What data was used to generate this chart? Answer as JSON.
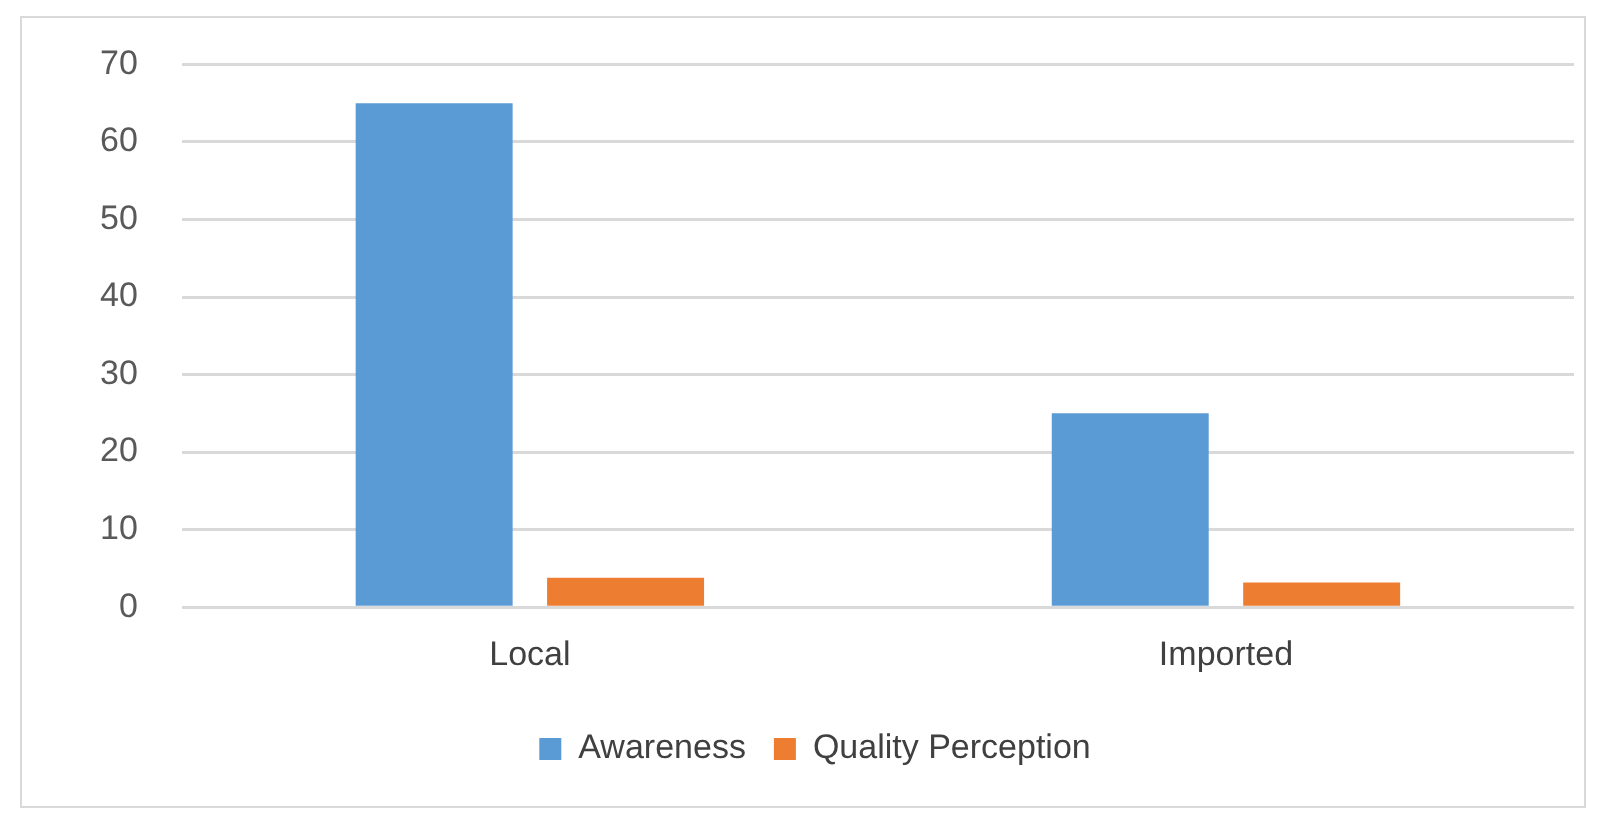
{
  "chart_data": {
    "type": "bar",
    "categories": [
      "Local",
      "Imported"
    ],
    "series": [
      {
        "name": "Awareness",
        "color": "#5b9bd5",
        "values": [
          65,
          25
        ]
      },
      {
        "name": "Quality Perception",
        "color": "#ed7d31",
        "values": [
          3.8,
          3.2
        ]
      }
    ],
    "ylim": [
      0,
      70
    ],
    "yticks": [
      0,
      10,
      20,
      30,
      40,
      50,
      60,
      70
    ],
    "grid": "y",
    "legend": "bottom"
  }
}
